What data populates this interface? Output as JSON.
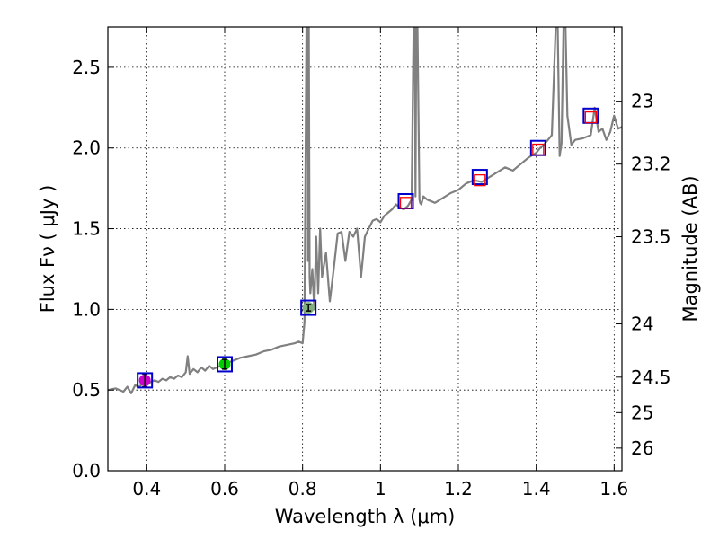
{
  "chart_data": {
    "type": "line",
    "title": "",
    "xlabel": "Wavelength  λ (μm)",
    "ylabel": "Flux  Fν  ( μJy )",
    "y2label": "Magnitude (AB)",
    "xlim": [
      0.3,
      1.62
    ],
    "ylim": [
      0.0,
      2.75
    ],
    "grid": true,
    "legend": "none",
    "x_ticks": [
      0.4,
      0.6,
      0.8,
      1.0,
      1.2,
      1.4,
      1.6
    ],
    "x_tick_labels": [
      "0.4",
      "0.6",
      "0.8",
      "1",
      "1.2",
      "1.4",
      "1.6"
    ],
    "y_ticks": [
      0.0,
      0.5,
      1.0,
      1.5,
      2.0,
      2.5
    ],
    "y_tick_labels": [
      "0.0",
      "0.5",
      "1.0",
      "1.5",
      "2.0",
      "2.5"
    ],
    "y2_ticks": [
      {
        "label": "23",
        "flux": 2.29
      },
      {
        "label": "23.2",
        "flux": 1.9
      },
      {
        "label": "23.5",
        "flux": 1.45
      },
      {
        "label": "24",
        "flux": 0.91
      },
      {
        "label": "24.5",
        "flux": 0.58
      },
      {
        "label": "25",
        "flux": 0.36
      },
      {
        "label": "26",
        "flux": 0.14
      }
    ],
    "series": [
      {
        "type": "line",
        "color": "#808080",
        "x": [
          0.3,
          0.32,
          0.34,
          0.35,
          0.36,
          0.37,
          0.38,
          0.39,
          0.4,
          0.41,
          0.42,
          0.43,
          0.44,
          0.45,
          0.46,
          0.47,
          0.48,
          0.49,
          0.5,
          0.505,
          0.51,
          0.52,
          0.53,
          0.54,
          0.55,
          0.56,
          0.57,
          0.58,
          0.6,
          0.62,
          0.64,
          0.66,
          0.68,
          0.7,
          0.72,
          0.74,
          0.76,
          0.78,
          0.79,
          0.8,
          0.805,
          0.81,
          0.812,
          0.814,
          0.816,
          0.818,
          0.82,
          0.825,
          0.83,
          0.835,
          0.84,
          0.845,
          0.85,
          0.86,
          0.87,
          0.88,
          0.89,
          0.9,
          0.91,
          0.92,
          0.93,
          0.94,
          0.95,
          0.96,
          0.97,
          0.98,
          0.99,
          1.0,
          1.01,
          1.02,
          1.03,
          1.04,
          1.05,
          1.06,
          1.07,
          1.08,
          1.085,
          1.088,
          1.09,
          1.092,
          1.095,
          1.1,
          1.102,
          1.105,
          1.11,
          1.12,
          1.14,
          1.16,
          1.18,
          1.2,
          1.22,
          1.24,
          1.26,
          1.28,
          1.3,
          1.32,
          1.34,
          1.36,
          1.38,
          1.4,
          1.41,
          1.42,
          1.43,
          1.44,
          1.45,
          1.455,
          1.46,
          1.465,
          1.47,
          1.475,
          1.48,
          1.49,
          1.5,
          1.52,
          1.54,
          1.55,
          1.56,
          1.57,
          1.58,
          1.59,
          1.6,
          1.61,
          1.62
        ],
        "y": [
          0.5,
          0.51,
          0.49,
          0.52,
          0.48,
          0.53,
          0.52,
          0.54,
          0.53,
          0.55,
          0.56,
          0.55,
          0.57,
          0.56,
          0.58,
          0.57,
          0.59,
          0.58,
          0.61,
          0.71,
          0.6,
          0.63,
          0.61,
          0.64,
          0.62,
          0.65,
          0.63,
          0.64,
          0.66,
          0.68,
          0.7,
          0.71,
          0.72,
          0.74,
          0.75,
          0.77,
          0.78,
          0.79,
          0.8,
          0.79,
          0.92,
          2.75,
          2.75,
          1.3,
          2.75,
          1.2,
          1.1,
          1.25,
          1.0,
          1.45,
          1.1,
          1.5,
          1.2,
          1.35,
          1.05,
          1.25,
          1.47,
          1.48,
          1.3,
          1.48,
          1.45,
          1.5,
          1.2,
          1.45,
          1.5,
          1.55,
          1.56,
          1.54,
          1.58,
          1.6,
          1.62,
          1.65,
          1.63,
          1.62,
          1.64,
          1.68,
          2.75,
          2.75,
          1.7,
          2.75,
          2.75,
          1.68,
          1.66,
          1.65,
          1.7,
          1.68,
          1.66,
          1.69,
          1.72,
          1.74,
          1.78,
          1.8,
          1.79,
          1.82,
          1.85,
          1.88,
          1.86,
          1.9,
          1.94,
          1.97,
          2.0,
          2.02,
          2.05,
          2.08,
          2.75,
          2.75,
          1.95,
          2.03,
          2.75,
          2.75,
          2.2,
          2.02,
          2.05,
          2.06,
          2.08,
          2.25,
          2.1,
          2.12,
          2.05,
          2.1,
          2.2,
          2.12,
          2.13
        ]
      }
    ],
    "photometry": [
      {
        "x": 0.395,
        "y": 0.56,
        "err": 0.04,
        "face": "#cc00cc",
        "edge": "#0000cc"
      },
      {
        "x": 0.6,
        "y": 0.66,
        "err": 0.03,
        "face": "#00cc00",
        "edge": "#0000cc"
      },
      {
        "x": 0.815,
        "y": 1.01,
        "err": 0.02,
        "face": "#80b080",
        "edge": "#0000cc"
      }
    ],
    "model_points": [
      {
        "x": 0.395,
        "y": 0.56,
        "edge": "#0000cc"
      },
      {
        "x": 0.6,
        "y": 0.66,
        "edge": "#0000cc"
      },
      {
        "x": 0.815,
        "y": 1.01,
        "edge": "#0000cc"
      },
      {
        "x": 1.065,
        "y": 1.67,
        "edge": "#0000cc"
      },
      {
        "x": 1.255,
        "y": 1.82,
        "edge": "#0000cc"
      },
      {
        "x": 1.405,
        "y": 2.0,
        "edge": "#0000cc"
      },
      {
        "x": 1.54,
        "y": 2.2,
        "edge": "#0000cc"
      }
    ],
    "upper_points": [
      {
        "x": 1.065,
        "y": 1.66,
        "edge": "#ff0000"
      },
      {
        "x": 1.255,
        "y": 1.8,
        "edge": "#ff0000"
      },
      {
        "x": 1.405,
        "y": 1.99,
        "edge": "#ff0000"
      },
      {
        "x": 1.54,
        "y": 2.19,
        "edge": "#ff0000"
      }
    ]
  }
}
